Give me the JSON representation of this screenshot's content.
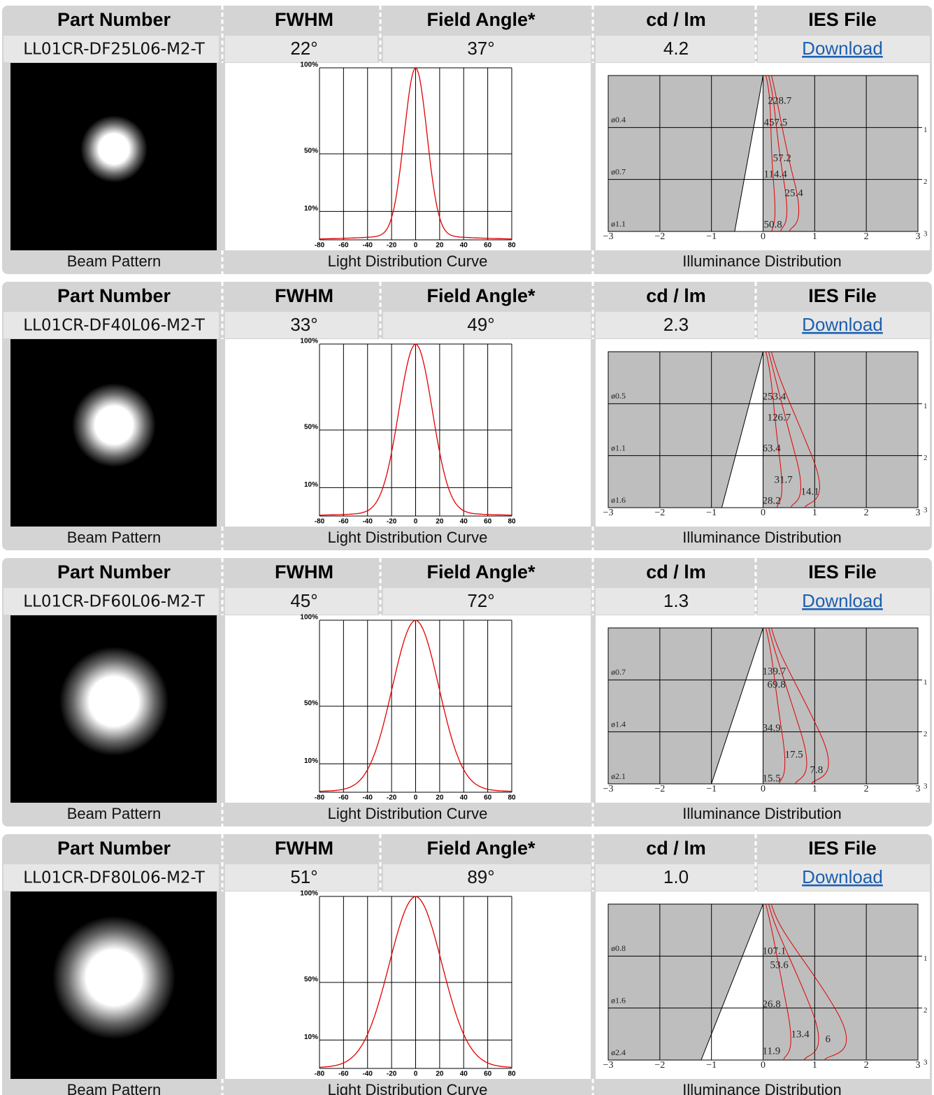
{
  "blocks": [
    {
      "headers": [
        "Part Number",
        "FWHM",
        "Field Angle*",
        "cd / lm",
        "IES File"
      ],
      "row": [
        "LL01CR-DF25L06-M2-T",
        "22°",
        "37°",
        "4.2",
        "Download"
      ],
      "labels": [
        "Beam Pattern",
        "Light Distribution Curve",
        "Illuminance Distribution"
      ],
      "curve": {
        "yticks": [
          "100%",
          "50%",
          "10%"
        ],
        "xticks": [
          "-80",
          "-60",
          "-40",
          "-20",
          "0",
          "20",
          "40",
          "60",
          "80"
        ]
      },
      "illuminance": {
        "xticks": [
          "−3",
          "−2",
          "−1",
          "0",
          "1",
          "2",
          "3"
        ],
        "rows": [
          "1",
          "2",
          "3"
        ],
        "diameters": [
          "ø0.4",
          "ø0.7",
          "ø1.1"
        ],
        "values": [
          "228.7",
          "457.5",
          "57.2",
          "114.4",
          "25.4",
          "50.8"
        ]
      }
    },
    {
      "headers": [
        "Part Number",
        "FWHM",
        "Field Angle*",
        "cd / lm",
        "IES File"
      ],
      "row": [
        "LL01CR-DF40L06-M2-T",
        "33°",
        "49°",
        "2.3",
        "Download"
      ],
      "labels": [
        "Beam Pattern",
        "Light Distribution Curve",
        "Illuminance Distribution"
      ],
      "curve": {
        "yticks": [
          "100%",
          "50%",
          "10%"
        ],
        "xticks": [
          "-80",
          "-60",
          "-40",
          "-20",
          "0",
          "20",
          "40",
          "60",
          "80"
        ]
      },
      "illuminance": {
        "xticks": [
          "−3",
          "−2",
          "−1",
          "0",
          "1",
          "2",
          "3"
        ],
        "rows": [
          "1",
          "2",
          "3"
        ],
        "diameters": [
          "ø0.5",
          "ø1.1",
          "ø1.6"
        ],
        "values": [
          "253.4",
          "126.7",
          "63.4",
          "31.7",
          "14.1",
          "28.2"
        ]
      }
    },
    {
      "headers": [
        "Part Number",
        "FWHM",
        "Field Angle*",
        "cd / lm",
        "IES File"
      ],
      "row": [
        "LL01CR-DF60L06-M2-T",
        "45°",
        "72°",
        "1.3",
        "Download"
      ],
      "labels": [
        "Beam Pattern",
        "Light Distribution Curve",
        "Illuminance Distribution"
      ],
      "curve": {
        "yticks": [
          "100%",
          "50%",
          "10%"
        ],
        "xticks": [
          "-80",
          "-60",
          "-40",
          "-20",
          "0",
          "20",
          "40",
          "60",
          "80"
        ]
      },
      "illuminance": {
        "xticks": [
          "−3",
          "−2",
          "−1",
          "0",
          "1",
          "2",
          "3"
        ],
        "rows": [
          "1",
          "2",
          "3"
        ],
        "diameters": [
          "ø0.7",
          "ø1.4",
          "ø2.1"
        ],
        "values": [
          "139.7",
          "69.8",
          "34.9",
          "17.5",
          "7.8",
          "15.5"
        ]
      }
    },
    {
      "headers": [
        "Part Number",
        "FWHM",
        "Field Angle*",
        "cd / lm",
        "IES File"
      ],
      "row": [
        "LL01CR-DF80L06-M2-T",
        "51°",
        "89°",
        "1.0",
        "Download"
      ],
      "labels": [
        "Beam Pattern",
        "Light Distribution Curve",
        "Illuminance Distribution"
      ],
      "curve": {
        "yticks": [
          "100%",
          "50%",
          "10%"
        ],
        "xticks": [
          "-80",
          "-60",
          "-40",
          "-20",
          "0",
          "20",
          "40",
          "60",
          "80"
        ]
      },
      "illuminance": {
        "xticks": [
          "−3",
          "−2",
          "−1",
          "0",
          "1",
          "2",
          "3"
        ],
        "rows": [
          "1",
          "2",
          "3"
        ],
        "diameters": [
          "ø0.8",
          "ø1.6",
          "ø2.4"
        ],
        "values": [
          "107.1",
          "53.6",
          "26.8",
          "13.4",
          "6",
          "11.9"
        ]
      }
    }
  ]
}
